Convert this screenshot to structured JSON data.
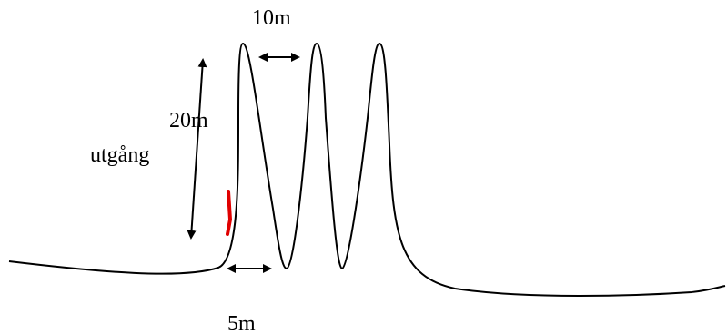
{
  "labels": {
    "top_width": "10m",
    "height": "20m",
    "exit": "utgång",
    "bottom_width": "5m"
  },
  "colors": {
    "outline": "#000000",
    "exit_marker": "#e00000"
  }
}
